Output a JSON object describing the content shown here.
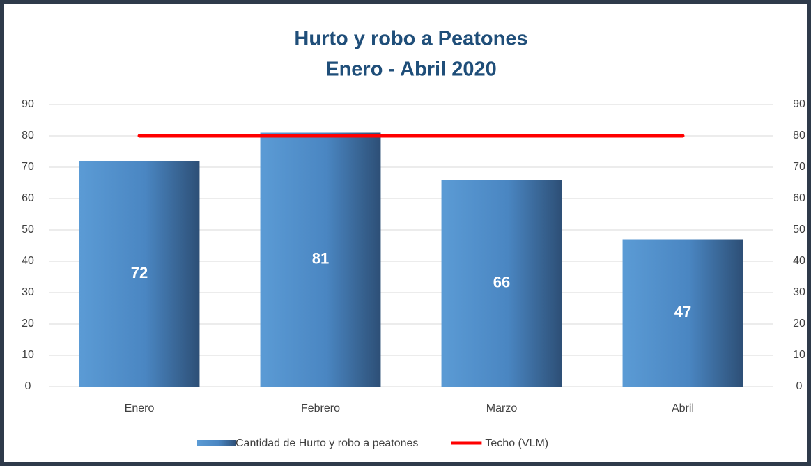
{
  "chart_data": {
    "type": "bar",
    "title": "Hurto y robo a Peatones",
    "subtitle": "Enero - Abril 2020",
    "categories": [
      "Enero",
      "Febrero",
      "Marzo",
      "Abril"
    ],
    "series": [
      {
        "name": "Cantidad de Hurto y robo a peatones",
        "type": "bar",
        "color": "#5b9bd5",
        "values": [
          72,
          81,
          66,
          47
        ]
      },
      {
        "name": "Techo (VLM)",
        "type": "line",
        "color": "#ff0000",
        "axis": "y2",
        "values": [
          80,
          80,
          80,
          80
        ]
      }
    ],
    "ylim": [
      0,
      90
    ],
    "yticks": [
      0,
      10,
      20,
      30,
      40,
      50,
      60,
      70,
      80,
      90
    ],
    "y2lim": [
      0,
      90
    ],
    "y2ticks": [
      0,
      10,
      20,
      30,
      40,
      50,
      60,
      70,
      80,
      90
    ],
    "grid": true,
    "legend": "bottom"
  }
}
